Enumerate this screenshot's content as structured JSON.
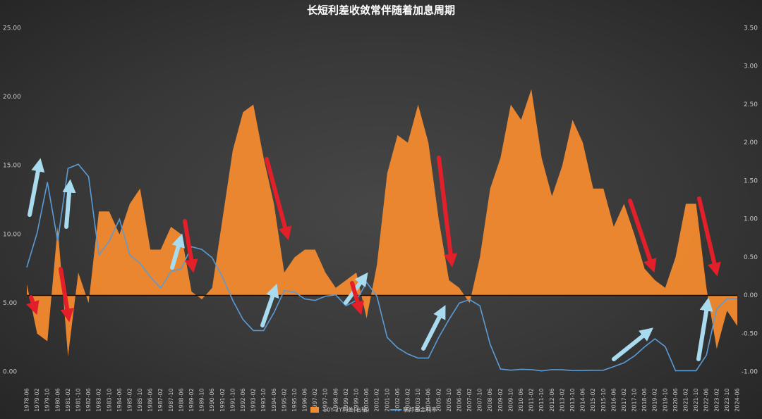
{
  "chart_data": {
    "type": "combo",
    "title": "长短利差收敛常伴随着加息周期",
    "categories": [
      "1978-06",
      "1979-02",
      "1979-10",
      "1980-06",
      "1981-02",
      "1981-10",
      "1982-06",
      "1983-02",
      "1983-10",
      "1984-06",
      "1985-02",
      "1985-10",
      "1986-06",
      "1987-02",
      "1987-10",
      "1988-06",
      "1989-02",
      "1989-10",
      "1990-06",
      "1991-02",
      "1991-10",
      "1992-06",
      "1993-02",
      "1993-10",
      "1994-06",
      "1995-02",
      "1995-10",
      "1996-06",
      "1997-02",
      "1997-10",
      "1998-06",
      "1999-02",
      "1999-10",
      "2000-06",
      "2001-02",
      "2001-10",
      "2002-06",
      "2003-02",
      "2003-10",
      "2004-06",
      "2005-02",
      "2005-10",
      "2006-06",
      "2007-02",
      "2007-10",
      "2008-06",
      "2009-02",
      "2009-10",
      "2010-06",
      "2011-02",
      "2011-10",
      "2012-06",
      "2013-02",
      "2013-10",
      "2014-06",
      "2015-02",
      "2015-10",
      "2016-06",
      "2017-02",
      "2017-10",
      "2018-06",
      "2019-02",
      "2019-10",
      "2020-06",
      "2021-02",
      "2021-10",
      "2022-06",
      "2023-02",
      "2023-10",
      "2024-06"
    ],
    "series": [
      {
        "name": "10Y-2Y利差(右轴)",
        "type": "area",
        "axis": "y2",
        "color": "#f28a2e",
        "values": [
          0.15,
          -0.5,
          -0.6,
          0.9,
          -0.8,
          0.3,
          -0.1,
          1.1,
          1.1,
          0.8,
          1.2,
          1.4,
          0.6,
          0.6,
          0.9,
          0.8,
          0.05,
          -0.05,
          0.1,
          1.0,
          1.9,
          2.4,
          2.5,
          1.8,
          1.2,
          0.3,
          0.5,
          0.6,
          0.6,
          0.3,
          0.1,
          0.2,
          0.3,
          -0.3,
          0.4,
          1.6,
          2.1,
          2.0,
          2.5,
          2.0,
          1.0,
          0.2,
          0.1,
          -0.1,
          0.5,
          1.4,
          1.8,
          2.5,
          2.3,
          2.7,
          1.8,
          1.3,
          1.7,
          2.3,
          2.0,
          1.4,
          1.4,
          0.9,
          1.2,
          0.8,
          0.35,
          0.2,
          0.1,
          0.5,
          1.2,
          1.2,
          0.1,
          -0.7,
          -0.2,
          -0.4
        ]
      },
      {
        "name": "联邦基金利率",
        "type": "line",
        "color": "#5b9bd5",
        "values": [
          7.6,
          10.1,
          13.8,
          9.5,
          14.8,
          15.1,
          14.2,
          8.5,
          9.5,
          11.1,
          8.5,
          7.9,
          6.9,
          6.1,
          7.3,
          7.5,
          9.1,
          8.9,
          8.3,
          6.9,
          5.2,
          3.8,
          3.0,
          3.0,
          4.3,
          5.9,
          5.8,
          5.3,
          5.2,
          5.5,
          5.6,
          4.8,
          5.2,
          6.5,
          5.5,
          2.5,
          1.75,
          1.3,
          1.0,
          1.0,
          2.5,
          3.8,
          5.0,
          5.25,
          4.8,
          2.0,
          0.2,
          0.12,
          0.18,
          0.16,
          0.07,
          0.16,
          0.15,
          0.09,
          0.1,
          0.11,
          0.12,
          0.38,
          0.66,
          1.15,
          1.82,
          2.4,
          1.83,
          0.08,
          0.08,
          0.08,
          1.21,
          4.57,
          5.33,
          5.33
        ]
      }
    ],
    "ylim": [
      0,
      25
    ],
    "yticks": [
      {
        "value": 0,
        "label": "0.00"
      },
      {
        "value": 5,
        "label": "5.00"
      },
      {
        "value": 10,
        "label": "10.00"
      },
      {
        "value": 15,
        "label": "15.00"
      },
      {
        "value": 20,
        "label": "20.00"
      },
      {
        "value": 25,
        "label": "25.00"
      }
    ],
    "y2lim": [
      -1,
      3.5
    ],
    "y2ticks": [
      {
        "value": -1,
        "label": "-1.00"
      },
      {
        "value": -0.5,
        "label": "-0.50"
      },
      {
        "value": 0,
        "label": "0.00"
      },
      {
        "value": 0.5,
        "label": "0.50"
      },
      {
        "value": 1,
        "label": "1.00"
      },
      {
        "value": 1.5,
        "label": "1.50"
      },
      {
        "value": 2,
        "label": "2.00"
      },
      {
        "value": 2.5,
        "label": "2.50"
      },
      {
        "value": 3,
        "label": "3.00"
      },
      {
        "value": 3.5,
        "label": "3.50"
      }
    ]
  }
}
